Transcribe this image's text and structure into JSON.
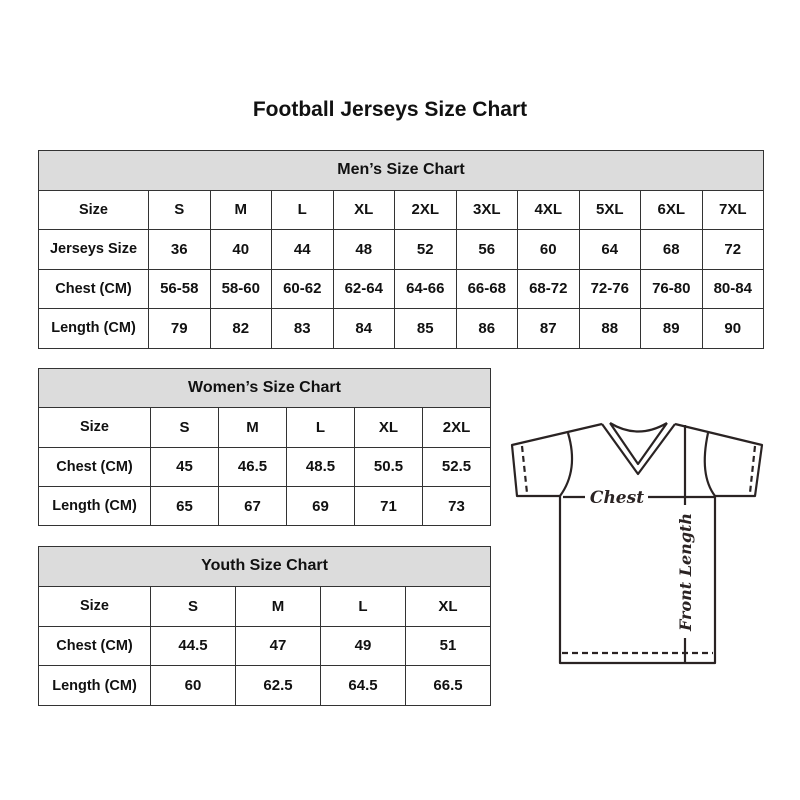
{
  "title": "Football Jerseys Size Chart",
  "men": {
    "title": "Men’s Size Chart",
    "rows": [
      {
        "label": "Size",
        "values": [
          "S",
          "M",
          "L",
          "XL",
          "2XL",
          "3XL",
          "4XL",
          "5XL",
          "6XL",
          "7XL"
        ]
      },
      {
        "label": "Jerseys Size",
        "values": [
          "36",
          "40",
          "44",
          "48",
          "52",
          "56",
          "60",
          "64",
          "68",
          "72"
        ]
      },
      {
        "label": "Chest (CM)",
        "values": [
          "56-58",
          "58-60",
          "60-62",
          "62-64",
          "64-66",
          "66-68",
          "68-72",
          "72-76",
          "76-80",
          "80-84"
        ]
      },
      {
        "label": "Length (CM)",
        "values": [
          "79",
          "82",
          "83",
          "84",
          "85",
          "86",
          "87",
          "88",
          "89",
          "90"
        ]
      }
    ]
  },
  "women": {
    "title": "Women’s Size Chart",
    "rows": [
      {
        "label": "Size",
        "values": [
          "S",
          "M",
          "L",
          "XL",
          "2XL"
        ]
      },
      {
        "label": "Chest (CM)",
        "values": [
          "45",
          "46.5",
          "48.5",
          "50.5",
          "52.5"
        ]
      },
      {
        "label": "Length (CM)",
        "values": [
          "65",
          "67",
          "69",
          "71",
          "73"
        ]
      }
    ]
  },
  "youth": {
    "title": "Youth Size Chart",
    "rows": [
      {
        "label": "Size",
        "values": [
          "S",
          "M",
          "L",
          "XL"
        ]
      },
      {
        "label": "Chest (CM)",
        "values": [
          "44.5",
          "47",
          "49",
          "51"
        ]
      },
      {
        "label": "Length (CM)",
        "values": [
          "60",
          "62.5",
          "64.5",
          "66.5"
        ]
      }
    ]
  },
  "diagram": {
    "chest_label": "Chest",
    "length_label": "Front Length"
  }
}
